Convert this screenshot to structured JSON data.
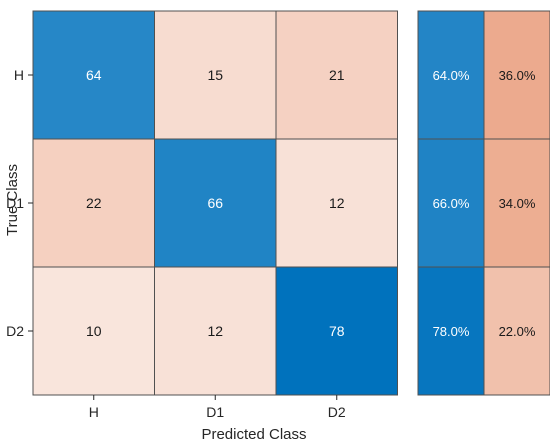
{
  "chart_data": {
    "type": "heatmap",
    "title": "",
    "xlabel": "Predicted Class",
    "ylabel": "True Class",
    "x_categories": [
      "H",
      "D1",
      "D2"
    ],
    "y_categories": [
      "H",
      "D1",
      "D2"
    ],
    "values": [
      [
        64,
        15,
        21
      ],
      [
        22,
        66,
        12
      ],
      [
        10,
        12,
        78
      ]
    ],
    "row_summary": [
      [
        "64.0%",
        "36.0%"
      ],
      [
        "66.0%",
        "34.0%"
      ],
      [
        "78.0%",
        "22.0%"
      ]
    ],
    "row_summary_values": [
      [
        64.0,
        36.0
      ],
      [
        66.0,
        34.0
      ],
      [
        78.0,
        22.0
      ]
    ],
    "colors": {
      "diagonal_max": "#0072bd",
      "offdiagonal_max": "#d95319",
      "cell_border": "#505050",
      "background": "#ffffff"
    }
  }
}
